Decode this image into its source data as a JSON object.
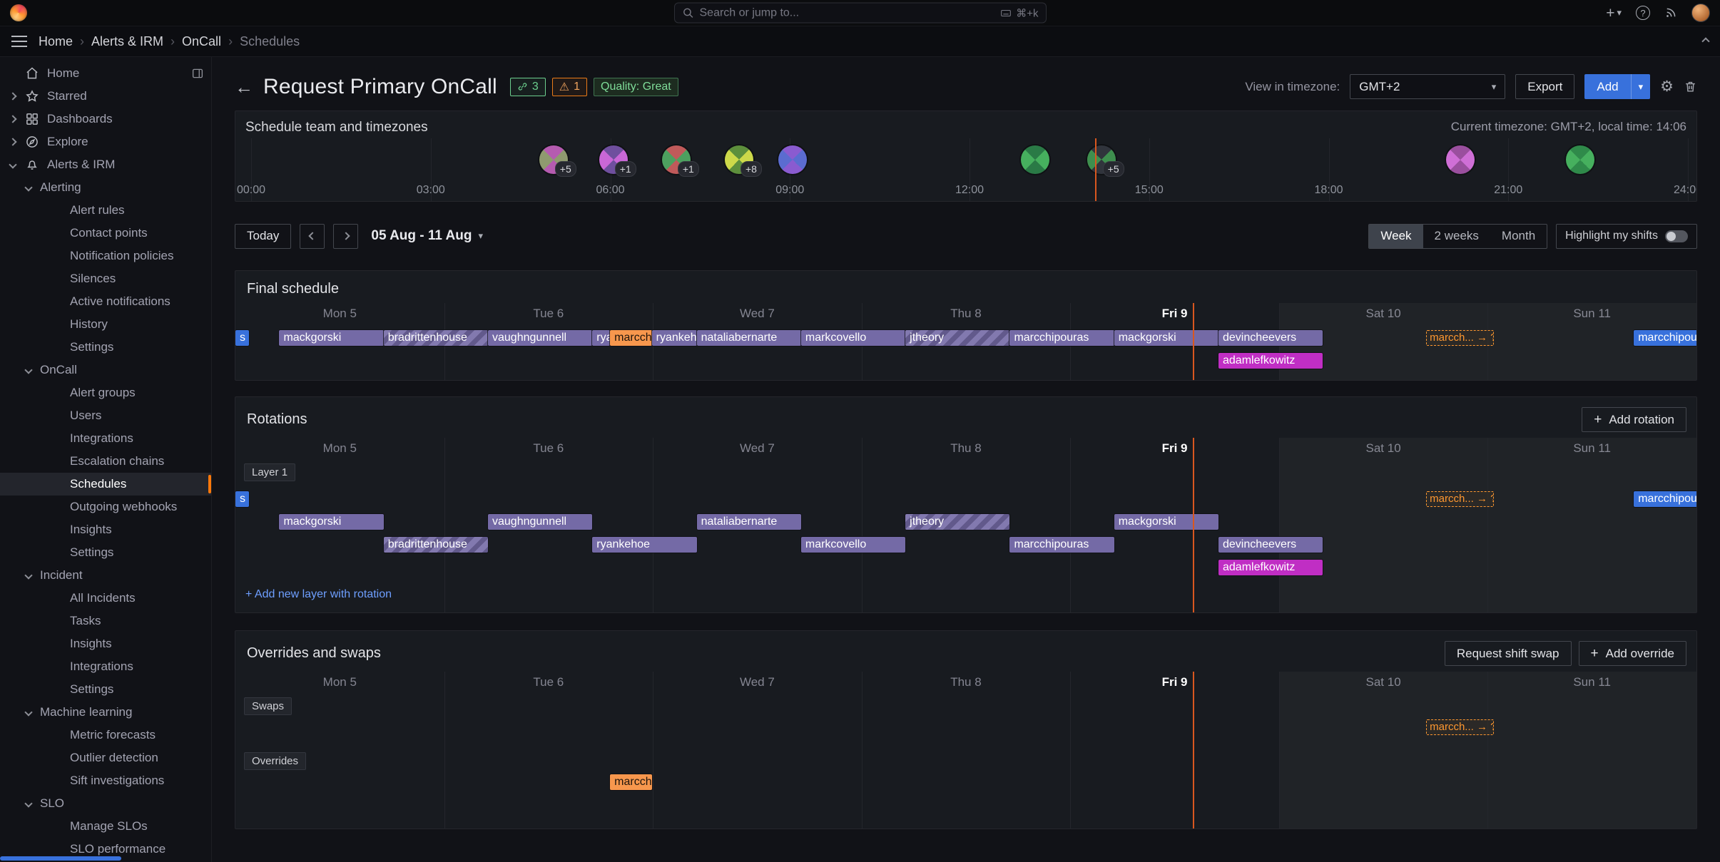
{
  "topbar": {
    "search_placeholder": "Search or jump to...",
    "search_shortcut": "⌘+k"
  },
  "breadcrumb": [
    "Home",
    "Alerts & IRM",
    "OnCall",
    "Schedules"
  ],
  "sidebar": {
    "items": [
      {
        "label": "Home",
        "level": 0,
        "icon": "home",
        "trailing": "dock"
      },
      {
        "label": "Starred",
        "level": 0,
        "icon": "star",
        "chevron": "right"
      },
      {
        "label": "Dashboards",
        "level": 0,
        "icon": "apps",
        "chevron": "right"
      },
      {
        "label": "Explore",
        "level": 0,
        "icon": "compass",
        "chevron": "right"
      },
      {
        "label": "Alerts & IRM",
        "level": 0,
        "icon": "bell",
        "chevron": "down"
      },
      {
        "label": "Alerting",
        "level": 1,
        "chevron": "down"
      },
      {
        "label": "Alert rules",
        "level": 2
      },
      {
        "label": "Contact points",
        "level": 2
      },
      {
        "label": "Notification policies",
        "level": 2
      },
      {
        "label": "Silences",
        "level": 2
      },
      {
        "label": "Active notifications",
        "level": 2
      },
      {
        "label": "History",
        "level": 2
      },
      {
        "label": "Settings",
        "level": 2
      },
      {
        "label": "OnCall",
        "level": 1,
        "chevron": "down"
      },
      {
        "label": "Alert groups",
        "level": 2
      },
      {
        "label": "Users",
        "level": 2
      },
      {
        "label": "Integrations",
        "level": 2
      },
      {
        "label": "Escalation chains",
        "level": 2
      },
      {
        "label": "Schedules",
        "level": 2,
        "active": true
      },
      {
        "label": "Outgoing webhooks",
        "level": 2
      },
      {
        "label": "Insights",
        "level": 2
      },
      {
        "label": "Settings",
        "level": 2
      },
      {
        "label": "Incident",
        "level": 1,
        "chevron": "down"
      },
      {
        "label": "All Incidents",
        "level": 2
      },
      {
        "label": "Tasks",
        "level": 2
      },
      {
        "label": "Insights",
        "level": 2
      },
      {
        "label": "Integrations",
        "level": 2
      },
      {
        "label": "Settings",
        "level": 2
      },
      {
        "label": "Machine learning",
        "level": 1,
        "chevron": "down"
      },
      {
        "label": "Metric forecasts",
        "level": 2
      },
      {
        "label": "Outlier detection",
        "level": 2
      },
      {
        "label": "Sift investigations",
        "level": 2
      },
      {
        "label": "SLO",
        "level": 1,
        "chevron": "down"
      },
      {
        "label": "Manage SLOs",
        "level": 2
      },
      {
        "label": "SLO performance",
        "level": 2
      }
    ]
  },
  "header": {
    "title": "Request Primary OnCall",
    "link_badge": "3",
    "warning_badge": "1",
    "quality_badge": "Quality: Great",
    "timezone_label": "View in timezone:",
    "timezone_value": "GMT+2",
    "export_label": "Export",
    "add_label": "Add"
  },
  "team_panel": {
    "title": "Schedule team and timezones",
    "current_info": "Current timezone: GMT+2, local time: 14:06",
    "ticks": [
      "00:00",
      "03:00",
      "06:00",
      "09:00",
      "12:00",
      "15:00",
      "18:00",
      "21:00",
      "24:00"
    ],
    "now_hour": 14.1,
    "avatars": [
      {
        "hour": 5.05,
        "badge": "+5",
        "c1": "#8f9a6f",
        "c2": "#b55bb0"
      },
      {
        "hour": 6.05,
        "badge": "+1",
        "c1": "#c967d6",
        "c2": "#6f4f9e"
      },
      {
        "hour": 7.1,
        "badge": "+1",
        "c1": "#4da05f",
        "c2": "#c05a5a"
      },
      {
        "hour": 8.15,
        "badge": "+8",
        "c1": "#cdd94a",
        "c2": "#5d8f3c"
      },
      {
        "hour": 9.05,
        "badge": null,
        "c1": "#5b6cd0",
        "c2": "#8a5bd0"
      },
      {
        "hour": 13.1,
        "badge": null,
        "c1": "#46b05e",
        "c2": "#2a7a46"
      },
      {
        "hour": 14.2,
        "badge": "+5",
        "c1": "#3e8f4e",
        "c2": "#30343c"
      },
      {
        "hour": 20.2,
        "badge": null,
        "c1": "#cf6fd6",
        "c2": "#9a4f9e"
      },
      {
        "hour": 22.2,
        "badge": null,
        "c1": "#46b05e",
        "c2": "#2f8a4a"
      }
    ]
  },
  "datenav": {
    "today": "Today",
    "range": "05 Aug - 11 Aug",
    "views": [
      "Week",
      "2 weeks",
      "Month"
    ],
    "active_view": "Week",
    "highlight_label": "Highlight my shifts"
  },
  "timeline": {
    "days": [
      "Mon 5",
      "Tue 6",
      "Wed 7",
      "Thu 8",
      "Fri 9",
      "Sat 10",
      "Sun 11"
    ],
    "today_index": 4,
    "now_day": 4.588
  },
  "final_schedule": {
    "title": "Final schedule",
    "rows": [
      [
        {
          "label": "s",
          "start": 0,
          "end": 0.065,
          "color": "blue"
        },
        {
          "label": "mackgorski",
          "start": 0.21,
          "end": 0.71,
          "color": "purple"
        },
        {
          "label": "bradrittenhouse",
          "start": 0.71,
          "end": 1.21,
          "color": "purple",
          "hatched": true
        },
        {
          "label": "vaughngunnell",
          "start": 1.21,
          "end": 1.71,
          "color": "purple"
        },
        {
          "label": "ryankehoe",
          "start": 1.71,
          "end": 1.795,
          "color": "purple"
        },
        {
          "label": "marcchipouras",
          "start": 1.795,
          "end": 1.995,
          "color": "orange"
        },
        {
          "label": "ryankehoe",
          "start": 1.995,
          "end": 2.21,
          "color": "purple"
        },
        {
          "label": "nataliabernarte",
          "start": 2.21,
          "end": 2.71,
          "color": "purple"
        },
        {
          "label": "markcovello",
          "start": 2.71,
          "end": 3.21,
          "color": "purple"
        },
        {
          "label": "jtheory",
          "start": 3.21,
          "end": 3.71,
          "color": "purple",
          "hatched": true
        },
        {
          "label": "marcchipouras",
          "start": 3.71,
          "end": 4.21,
          "color": "purple"
        },
        {
          "label": "mackgorski",
          "start": 4.21,
          "end": 4.71,
          "color": "purple"
        },
        {
          "label": "devincheevers",
          "start": 4.71,
          "end": 5.21,
          "color": "purple"
        },
        {
          "label": "marcch... → ?",
          "start": 5.705,
          "end": 6.03,
          "type": "swap"
        },
        {
          "label": "marcchipouras",
          "start": 6.7,
          "end": 7.02,
          "color": "blue"
        }
      ],
      [
        {
          "label": "adamlefkowitz",
          "start": 4.71,
          "end": 5.21,
          "color": "magenta"
        }
      ]
    ]
  },
  "rotations": {
    "title": "Rotations",
    "add_rotation_label": "Add rotation",
    "layer_label": "Layer 1",
    "add_layer_label": "+ Add new layer with rotation",
    "rows": [
      [
        {
          "label": "s",
          "start": 0,
          "end": 0.065,
          "color": "blue"
        },
        {
          "label": "marcch... → ?",
          "start": 5.705,
          "end": 6.03,
          "type": "swap"
        },
        {
          "label": "marcchipouras",
          "start": 6.7,
          "end": 7.02,
          "color": "blue"
        }
      ],
      [
        {
          "label": "mackgorski",
          "start": 0.21,
          "end": 0.71,
          "color": "purple"
        },
        {
          "label": "vaughngunnell",
          "start": 1.21,
          "end": 1.71,
          "color": "purple"
        },
        {
          "label": "nataliabernarte",
          "start": 2.21,
          "end": 2.71,
          "color": "purple"
        },
        {
          "label": "jtheory",
          "start": 3.21,
          "end": 3.71,
          "color": "purple",
          "hatched": true
        },
        {
          "label": "mackgorski",
          "start": 4.21,
          "end": 4.71,
          "color": "purple"
        }
      ],
      [
        {
          "label": "bradrittenhouse",
          "start": 0.71,
          "end": 1.21,
          "color": "purple",
          "hatched": true
        },
        {
          "label": "ryankehoe",
          "start": 1.71,
          "end": 2.21,
          "color": "purple"
        },
        {
          "label": "markcovello",
          "start": 2.71,
          "end": 3.21,
          "color": "purple"
        },
        {
          "label": "marcchipouras",
          "start": 3.71,
          "end": 4.21,
          "color": "purple"
        },
        {
          "label": "devincheevers",
          "start": 4.71,
          "end": 5.21,
          "color": "purple"
        }
      ],
      [
        {
          "label": "adamlefkowitz",
          "start": 4.71,
          "end": 5.21,
          "color": "magenta"
        }
      ]
    ]
  },
  "overrides_panel": {
    "title": "Overrides and swaps",
    "request_swap_label": "Request shift swap",
    "add_override_label": "Add override",
    "swaps_label": "Swaps",
    "overrides_label": "Overrides",
    "swaps_row": [
      {
        "label": "marcch... → ?",
        "start": 5.705,
        "end": 6.03,
        "type": "swap"
      }
    ],
    "overrides_row": [
      {
        "label": "marcchipouras",
        "start": 1.795,
        "end": 1.995,
        "color": "orange"
      }
    ]
  },
  "colors": {
    "purple": "#746aa6",
    "blue": "#3871dc",
    "magenta": "#c02ec4",
    "orange": "#f7974d",
    "swap": "#ff9830",
    "now": "#d9571f",
    "accent": "#ff780a",
    "primary": "#3871dc",
    "success": "#6ccf8e",
    "warning": "#eb7b18"
  }
}
